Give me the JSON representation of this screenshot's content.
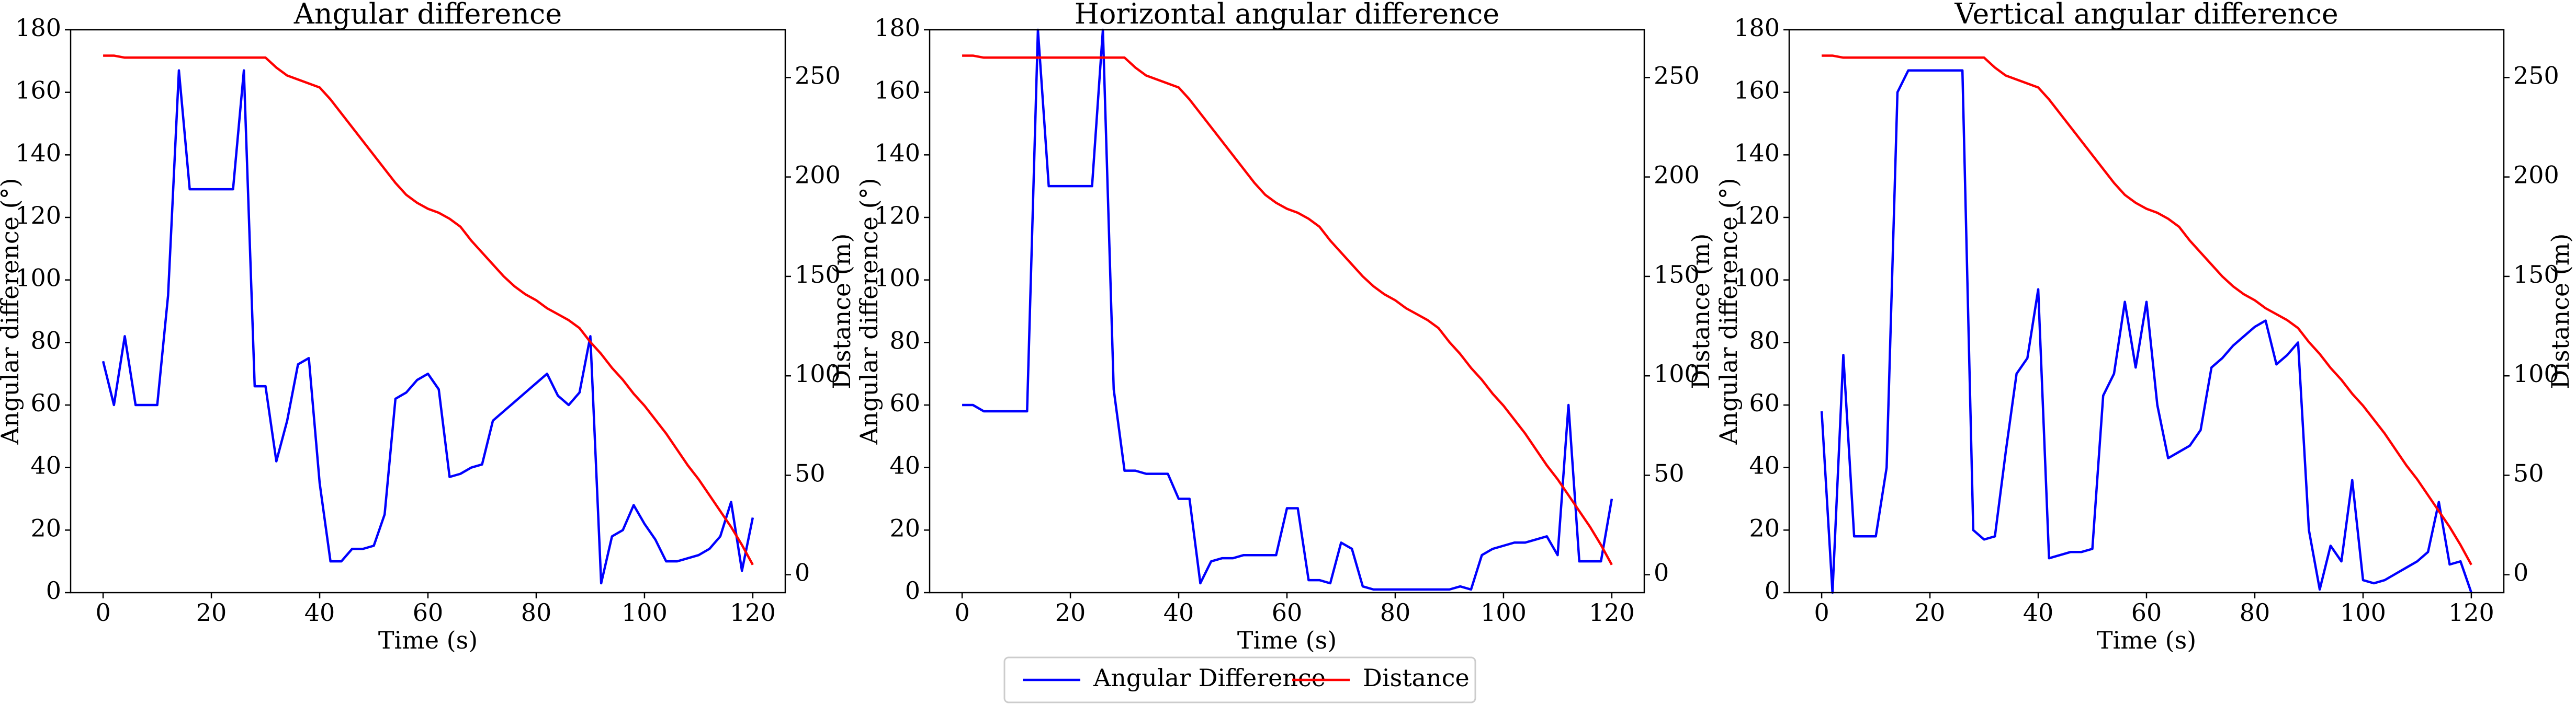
{
  "chart_data": [
    {
      "type": "line",
      "title": "Angular difference",
      "xlabel": "Time (s)",
      "ylabel": "Angular difference (°)",
      "y2label": "Distance (m)",
      "x": [
        0,
        2,
        4,
        6,
        8,
        10,
        12,
        14,
        16,
        18,
        20,
        22,
        24,
        26,
        28,
        30,
        32,
        34,
        36,
        38,
        40,
        42,
        44,
        46,
        48,
        50,
        52,
        54,
        56,
        58,
        60,
        62,
        64,
        66,
        68,
        70,
        72,
        74,
        76,
        78,
        80,
        82,
        84,
        86,
        88,
        90,
        92,
        94,
        96,
        98,
        100,
        102,
        104,
        106,
        108,
        110,
        112,
        114,
        116,
        118,
        120
      ],
      "series": [
        {
          "name": "Angular Difference",
          "color": "#0000ff",
          "values": [
            74,
            60,
            82,
            60,
            60,
            60,
            95,
            167,
            129,
            129,
            129,
            129,
            129,
            167,
            66,
            66,
            42,
            55,
            73,
            75,
            35,
            10,
            10,
            14,
            14,
            15,
            25,
            62,
            64,
            68,
            70,
            65,
            37,
            38,
            40,
            41,
            55,
            58,
            61,
            64,
            67,
            70,
            63,
            60,
            64,
            82,
            3,
            18,
            20,
            28,
            22,
            17,
            10,
            10,
            11,
            12,
            14,
            18,
            29,
            7,
            24
          ]
        },
        {
          "name": "Distance",
          "color": "#ff0000",
          "axis": "y2",
          "values": [
            261,
            261,
            260,
            260,
            260,
            260,
            260,
            260,
            260,
            260,
            260,
            260,
            260,
            260,
            260,
            260,
            255,
            251,
            249,
            247,
            245,
            239,
            232,
            225,
            218,
            211,
            204,
            197,
            191,
            187,
            184,
            182,
            179,
            175,
            168,
            162,
            156,
            150,
            145,
            141,
            138,
            134,
            131,
            128,
            124,
            117,
            111,
            104,
            98,
            91,
            85,
            78,
            71,
            63,
            55,
            48,
            40,
            32,
            24,
            15,
            5
          ]
        }
      ],
      "xlim": [
        -6,
        126
      ],
      "xticks": [
        0,
        20,
        40,
        60,
        80,
        100,
        120
      ],
      "ylim": [
        0,
        180
      ],
      "yticks": [
        0,
        20,
        40,
        60,
        80,
        100,
        120,
        140,
        160,
        180
      ],
      "y2lim": [
        -9,
        274
      ],
      "y2ticks": [
        0,
        50,
        100,
        150,
        200,
        250
      ]
    },
    {
      "type": "line",
      "title": "Horizontal angular difference",
      "xlabel": "Time (s)",
      "ylabel": "Angular difference (°)",
      "y2label": "Distance (m)",
      "x": [
        0,
        2,
        4,
        6,
        8,
        10,
        12,
        14,
        16,
        18,
        20,
        22,
        24,
        26,
        28,
        30,
        32,
        34,
        36,
        38,
        40,
        42,
        44,
        46,
        48,
        50,
        52,
        54,
        56,
        58,
        60,
        62,
        64,
        66,
        68,
        70,
        72,
        74,
        76,
        78,
        80,
        82,
        84,
        86,
        88,
        90,
        92,
        94,
        96,
        98,
        100,
        102,
        104,
        106,
        108,
        110,
        112,
        114,
        116,
        118,
        120
      ],
      "series": [
        {
          "color": "#0000ff",
          "values": [
            60,
            60,
            58,
            58,
            58,
            58,
            58,
            180,
            130,
            130,
            130,
            130,
            130,
            180,
            65,
            39,
            39,
            38,
            38,
            38,
            30,
            30,
            3,
            10,
            11,
            11,
            12,
            12,
            12,
            12,
            27,
            27,
            4,
            4,
            3,
            16,
            14,
            2,
            1,
            1,
            1,
            1,
            1,
            1,
            1,
            1,
            2,
            1,
            12,
            14,
            15,
            16,
            16,
            17,
            18,
            12,
            60,
            10,
            10,
            10,
            30
          ]
        },
        {
          "color": "#ff0000",
          "axis": "y2",
          "values": [
            261,
            261,
            260,
            260,
            260,
            260,
            260,
            260,
            260,
            260,
            260,
            260,
            260,
            260,
            260,
            260,
            255,
            251,
            249,
            247,
            245,
            239,
            232,
            225,
            218,
            211,
            204,
            197,
            191,
            187,
            184,
            182,
            179,
            175,
            168,
            162,
            156,
            150,
            145,
            141,
            138,
            134,
            131,
            128,
            124,
            117,
            111,
            104,
            98,
            91,
            85,
            78,
            71,
            63,
            55,
            48,
            40,
            32,
            24,
            15,
            5
          ]
        }
      ],
      "xlim": [
        -6,
        126
      ],
      "xticks": [
        0,
        20,
        40,
        60,
        80,
        100,
        120
      ],
      "ylim": [
        0,
        180
      ],
      "yticks": [
        0,
        20,
        40,
        60,
        80,
        100,
        120,
        140,
        160,
        180
      ],
      "y2lim": [
        -9,
        274
      ],
      "y2ticks": [
        0,
        50,
        100,
        150,
        200,
        250
      ]
    },
    {
      "type": "line",
      "title": "Vertical angular difference",
      "xlabel": "Time (s)",
      "ylabel": "Angular difference (°)",
      "y2label": "Distance (m)",
      "x": [
        0,
        2,
        4,
        6,
        8,
        10,
        12,
        14,
        16,
        18,
        20,
        22,
        24,
        26,
        28,
        30,
        32,
        34,
        36,
        38,
        40,
        42,
        44,
        46,
        48,
        50,
        52,
        54,
        56,
        58,
        60,
        62,
        64,
        66,
        68,
        70,
        72,
        74,
        76,
        78,
        80,
        82,
        84,
        86,
        88,
        90,
        92,
        94,
        96,
        98,
        100,
        102,
        104,
        106,
        108,
        110,
        112,
        114,
        116,
        118,
        120
      ],
      "series": [
        {
          "color": "#0000ff",
          "values": [
            58,
            0,
            76,
            18,
            18,
            18,
            40,
            160,
            167,
            167,
            167,
            167,
            167,
            167,
            20,
            17,
            18,
            45,
            70,
            75,
            97,
            11,
            12,
            13,
            13,
            14,
            63,
            70,
            93,
            72,
            93,
            60,
            43,
            45,
            47,
            52,
            72,
            75,
            79,
            82,
            85,
            87,
            73,
            76,
            80,
            20,
            1,
            15,
            10,
            36,
            4,
            3,
            4,
            6,
            8,
            10,
            13,
            29,
            9,
            10,
            0
          ]
        },
        {
          "color": "#ff0000",
          "axis": "y2",
          "values": [
            261,
            261,
            260,
            260,
            260,
            260,
            260,
            260,
            260,
            260,
            260,
            260,
            260,
            260,
            260,
            260,
            255,
            251,
            249,
            247,
            245,
            239,
            232,
            225,
            218,
            211,
            204,
            197,
            191,
            187,
            184,
            182,
            179,
            175,
            168,
            162,
            156,
            150,
            145,
            141,
            138,
            134,
            131,
            128,
            124,
            117,
            111,
            104,
            98,
            91,
            85,
            78,
            71,
            63,
            55,
            48,
            40,
            32,
            24,
            15,
            5
          ]
        }
      ],
      "xlim": [
        -6,
        126
      ],
      "xticks": [
        0,
        20,
        40,
        60,
        80,
        100,
        120
      ],
      "ylim": [
        0,
        180
      ],
      "yticks": [
        0,
        20,
        40,
        60,
        80,
        100,
        120,
        140,
        160,
        180
      ],
      "y2lim": [
        -9,
        274
      ],
      "y2ticks": [
        0,
        50,
        100,
        150,
        200,
        250
      ]
    }
  ]
}
